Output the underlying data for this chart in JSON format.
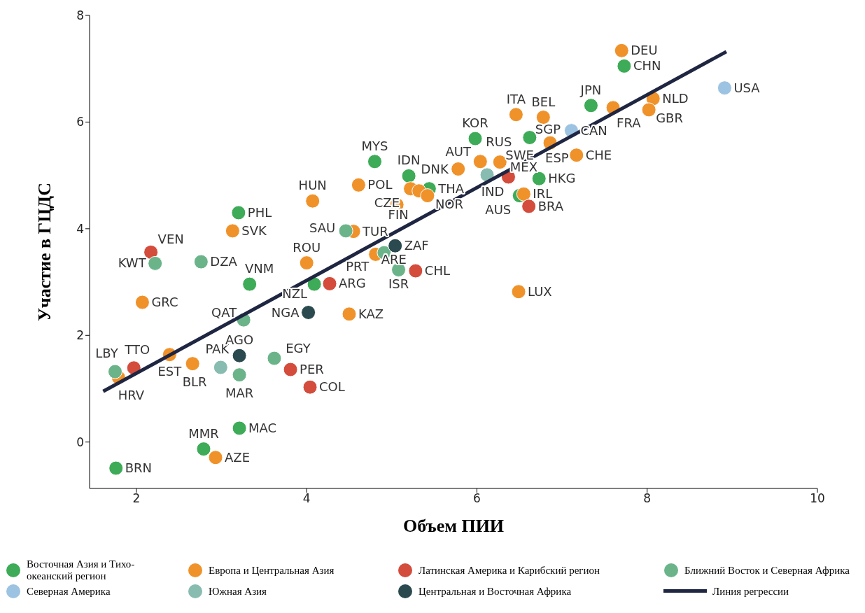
{
  "chart_data": {
    "type": "scatter",
    "xlabel": "Объем ПИИ",
    "ylabel": "Участие в ГЦДС",
    "xlim": [
      1.45,
      10
    ],
    "ylim": [
      -0.87,
      8
    ],
    "xticks": [
      2,
      4,
      6,
      8,
      10
    ],
    "yticks": [
      0,
      2,
      4,
      6,
      8
    ],
    "grid": false,
    "legend": "bottom",
    "marker": "circle",
    "series": [
      {
        "name": "Восточная Азия и Тихо-океанский регион",
        "color": "#3dab57",
        "x": [
          7.73,
          7.34,
          6.62,
          5.98,
          6.73,
          4.8,
          5.2,
          5.44,
          6.5,
          3.2,
          3.33,
          4.09,
          3.21,
          2.79,
          1.76
        ],
        "values": [
          7.05,
          6.31,
          5.71,
          5.69,
          4.94,
          5.26,
          4.99,
          4.75,
          4.62,
          4.3,
          2.96,
          2.96,
          0.26,
          -0.13,
          -0.49
        ],
        "value_labels": [
          "CHN",
          "JPN",
          "SGP",
          "KOR",
          "HKG",
          "MYS",
          "IDN",
          "THA",
          "AUS",
          "PHL",
          "VNM",
          "NZL",
          "MAC",
          "MMR",
          "BRN"
        ]
      },
      {
        "name": "Европа и Центральная Азия",
        "color": "#f0922a",
        "x": [
          7.7,
          7.6,
          8.07,
          8.02,
          6.46,
          6.78,
          6.86,
          7.17,
          6.04,
          6.27,
          5.78,
          4.61,
          5.22,
          5.32,
          5.42,
          5.06,
          6.55,
          4.07,
          3.13,
          4.55,
          4.81,
          4.0,
          6.49,
          4.5,
          2.07,
          2.39,
          2.66,
          1.79,
          2.93
        ],
        "values": [
          7.34,
          6.27,
          6.44,
          6.23,
          6.14,
          6.09,
          5.61,
          5.38,
          5.26,
          5.25,
          5.12,
          4.82,
          4.75,
          4.71,
          4.62,
          4.45,
          4.65,
          4.52,
          3.96,
          3.95,
          3.52,
          3.36,
          2.82,
          2.4,
          2.62,
          1.64,
          1.47,
          1.21,
          -0.29
        ],
        "value_labels": [
          "DEU",
          "FRA",
          "NLD",
          "GBR",
          "ITA",
          "BEL",
          "ESP",
          "CHE",
          "RUS",
          "SWE",
          "AUT",
          "POL",
          "DNK",
          "CZE",
          "NOR",
          "FIN",
          "IRL",
          "HUN",
          "SVK",
          "TUR",
          "PRT",
          "ROU",
          "LUX",
          "KAZ",
          "GRC",
          "EST",
          "BLR",
          "HRV",
          "AZE"
        ]
      },
      {
        "name": "Латинская Америка и Карибский регион",
        "color": "#d44c3c",
        "x": [
          6.37,
          6.61,
          5.28,
          4.27,
          2.17,
          1.97,
          3.81,
          4.04
        ],
        "values": [
          4.97,
          4.42,
          3.21,
          2.97,
          3.56,
          1.39,
          1.36,
          1.03
        ],
        "value_labels": [
          "MEX",
          "BRA",
          "CHL",
          "ARG",
          "VEN",
          "TTO",
          "PER",
          "COL"
        ]
      },
      {
        "name": "Ближний Восток и Северная Африка",
        "color": "#6bb48a",
        "x": [
          4.46,
          4.91,
          5.08,
          2.22,
          2.76,
          3.26,
          3.62,
          3.21,
          1.75
        ],
        "values": [
          3.96,
          3.55,
          3.23,
          3.35,
          3.38,
          2.29,
          1.57,
          1.26,
          1.32
        ],
        "value_labels": [
          "SAU",
          "ARE",
          "ISR",
          "KWT",
          "DZA",
          "QAT",
          "EGY",
          "MAR",
          "LBY"
        ]
      },
      {
        "name": "Северная Америка",
        "color": "#9dc3e2",
        "x": [
          8.91,
          7.11
        ],
        "values": [
          6.64,
          5.84
        ],
        "value_labels": [
          "USA",
          "CAN"
        ]
      },
      {
        "name": "Южная Азия",
        "color": "#88bcb0",
        "x": [
          6.12,
          2.99
        ],
        "values": [
          5.01,
          1.4
        ],
        "value_labels": [
          "IND",
          "PAK"
        ]
      },
      {
        "name": "Центральная и Восточная Африка",
        "color": "#2b4a4f",
        "x": [
          5.04,
          4.02,
          3.21
        ],
        "values": [
          3.68,
          2.43,
          1.62
        ],
        "value_labels": [
          "ZAF",
          "NGA",
          "AGO"
        ]
      },
      {
        "name": "Линия регрессии",
        "type": "line",
        "marker": "none",
        "color": "#1f2642",
        "x": [
          1.61,
          8.93
        ],
        "values": [
          0.95,
          7.32
        ]
      }
    ]
  }
}
